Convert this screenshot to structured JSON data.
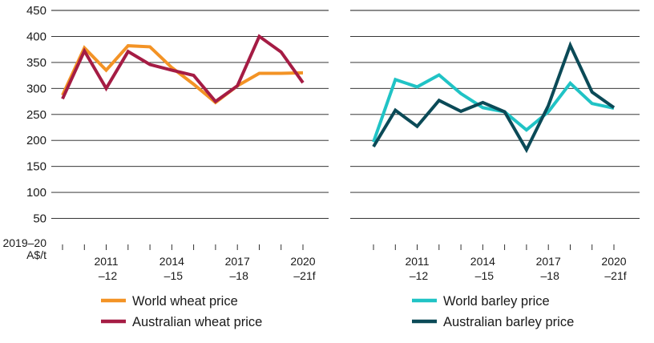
{
  "y_unit_label_line1": "2019–20",
  "y_unit_label_line2": "A$/t",
  "chart_data": [
    {
      "type": "line",
      "title": "",
      "xlabel": "",
      "ylabel": "2019–20 A$/t",
      "ylim": [
        0,
        450
      ],
      "yticks": [
        50,
        100,
        150,
        200,
        250,
        300,
        350,
        400,
        450
      ],
      "x": [
        2009,
        2010,
        2011,
        2012,
        2013,
        2014,
        2015,
        2016,
        2017,
        2018,
        2019,
        2020
      ],
      "xticks": [
        {
          "x": 2011,
          "line1": "2011",
          "line2": "–12"
        },
        {
          "x": 2014,
          "line1": "2014",
          "line2": "–15"
        },
        {
          "x": 2017,
          "line1": "2017",
          "line2": "–18"
        },
        {
          "x": 2020,
          "line1": "2020",
          "line2": "–21f"
        }
      ],
      "series": [
        {
          "name": "World wheat price",
          "color": "#f39325",
          "values": [
            287,
            378,
            335,
            382,
            380,
            340,
            308,
            273,
            305,
            329,
            329,
            330
          ]
        },
        {
          "name": "Australian wheat price",
          "color": "#a51c44",
          "values": [
            280,
            372,
            300,
            371,
            346,
            335,
            325,
            275,
            305,
            400,
            370,
            311
          ]
        }
      ]
    },
    {
      "type": "line",
      "title": "",
      "xlabel": "",
      "ylabel": "2019–20 A$/t",
      "ylim": [
        0,
        450
      ],
      "yticks": [
        50,
        100,
        150,
        200,
        250,
        300,
        350,
        400,
        450
      ],
      "x": [
        2009,
        2010,
        2011,
        2012,
        2013,
        2014,
        2015,
        2016,
        2017,
        2018,
        2019,
        2020
      ],
      "xticks": [
        {
          "x": 2011,
          "line1": "2011",
          "line2": "–12"
        },
        {
          "x": 2014,
          "line1": "2014",
          "line2": "–15"
        },
        {
          "x": 2017,
          "line1": "2017",
          "line2": "–18"
        },
        {
          "x": 2020,
          "line1": "2020",
          "line2": "–21f"
        }
      ],
      "series": [
        {
          "name": "World barley price",
          "color": "#20c3c5",
          "values": [
            197,
            317,
            303,
            326,
            290,
            263,
            255,
            220,
            255,
            310,
            271,
            262
          ]
        },
        {
          "name": "Australian barley price",
          "color": "#0b4a57",
          "values": [
            188,
            258,
            227,
            277,
            256,
            273,
            255,
            182,
            267,
            383,
            293,
            263
          ]
        }
      ]
    }
  ]
}
